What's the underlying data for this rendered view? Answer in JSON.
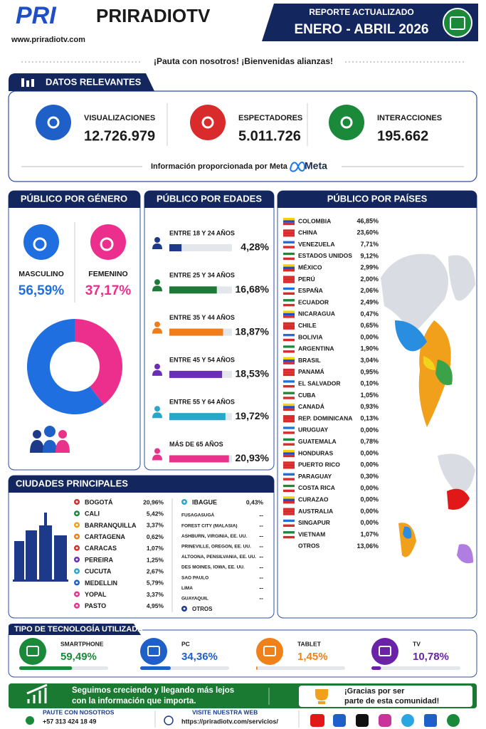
{
  "header": {
    "logo": "PRI",
    "brand": "PRIRADIOTV",
    "url": "www.priradiotv.com",
    "report_label": "REPORTE ACTUALIZADO",
    "period": "ENERO - ABRIL 2026"
  },
  "tagline": "¡Pauta con nosotros!  ¡Bienvenidas alianzas!",
  "key_data": {
    "title": "DATOS RELEVANTES",
    "items": [
      {
        "label": "VISUALIZACIONES",
        "value": "12.726.979",
        "color": "#1f5fc8"
      },
      {
        "label": "ESPECTADORES",
        "value": "5.011.726",
        "color": "#d92b2b"
      },
      {
        "label": "INTERACCIONES",
        "value": "195.662",
        "color": "#1a8a3a"
      }
    ],
    "source": "Información proporcionada por Meta",
    "source_logo": "Meta"
  },
  "gender": {
    "title": "PÚBLICO POR GÉNERO",
    "items": [
      {
        "label": "MASCULINO",
        "value": 56.59,
        "value_label": "56,59%",
        "color": "#1f6fe0"
      },
      {
        "label": "FEMENINO",
        "value": 37.17,
        "value_label": "37,17%",
        "color": "#ec2f8c"
      }
    ]
  },
  "ages": {
    "title": "PÚBLICO POR EDADES",
    "items": [
      {
        "label": "ENTRE 18 Y 24 AÑOS",
        "value": 4.28,
        "value_label": "4,28%",
        "color": "#1d3a8a"
      },
      {
        "label": "ENTRE 25 Y 34 AÑOS",
        "value": 16.68,
        "value_label": "16,68%",
        "color": "#1f7a3a"
      },
      {
        "label": "ENTRE 35 Y 44 AÑOS",
        "value": 18.87,
        "value_label": "18,87%",
        "color": "#f07c1a"
      },
      {
        "label": "ENTRE 45 Y 54 AÑOS",
        "value": 18.53,
        "value_label": "18,53%",
        "color": "#6a2fb5"
      },
      {
        "label": "ENTRE 55 Y 64 AÑOS",
        "value": 19.72,
        "value_label": "19,72%",
        "color": "#2aa6c9"
      },
      {
        "label": "MÁS DE 65 AÑOS",
        "value": 20.93,
        "value_label": "20,93%",
        "color": "#e8338a"
      }
    ]
  },
  "countries": {
    "title": "PÚBLICO POR PAÍSES",
    "items": [
      {
        "name": "COLOMBIA",
        "value": "46,85%"
      },
      {
        "name": "CHINA",
        "value": "23,60%"
      },
      {
        "name": "VENEZUELA",
        "value": "7,71%"
      },
      {
        "name": "ESTADOS UNIDOS",
        "value": "9,12%"
      },
      {
        "name": "MÉXICO",
        "value": "2,99%"
      },
      {
        "name": "PERÚ",
        "value": "2,00%"
      },
      {
        "name": "ESPAÑA",
        "value": "2,06%"
      },
      {
        "name": "ECUADOR",
        "value": "2,49%"
      },
      {
        "name": "NICARAGUA",
        "value": "0,47%"
      },
      {
        "name": "CHILE",
        "value": "0,65%"
      },
      {
        "name": "BOLIVIA",
        "value": "0,00%"
      },
      {
        "name": "ARGENTINA",
        "value": "1,90%"
      },
      {
        "name": "BRASIL",
        "value": "3,04%"
      },
      {
        "name": "PANAMÁ",
        "value": "0,95%"
      },
      {
        "name": "EL SALVADOR",
        "value": "0,10%"
      },
      {
        "name": "CUBA",
        "value": "1,05%"
      },
      {
        "name": "CANADÁ",
        "value": "0,93%"
      },
      {
        "name": "REP. DOMINICANA",
        "value": "0,13%"
      },
      {
        "name": "URUGUAY",
        "value": "0,00%"
      },
      {
        "name": "GUATEMALA",
        "value": "0,78%"
      },
      {
        "name": "HONDURAS",
        "value": "0,00%"
      },
      {
        "name": "PUERTO RICO",
        "value": "0,00%"
      },
      {
        "name": "PARAGUAY",
        "value": "0,30%"
      },
      {
        "name": "COSTA RICA",
        "value": "0,00%"
      },
      {
        "name": "CURAZAO",
        "value": "0,00%"
      },
      {
        "name": "AUSTRALIA",
        "value": "0,00%"
      },
      {
        "name": "SINGAPUR",
        "value": "0,00%"
      },
      {
        "name": "VIETNAM",
        "value": "1,07%"
      }
    ],
    "other": {
      "name": "OTROS",
      "value": "13,06%"
    }
  },
  "cities": {
    "title": "CIUDADES PRINCIPALES",
    "left": [
      {
        "name": "BOGOTÁ",
        "value": "20,96%",
        "color": "#d92b2b"
      },
      {
        "name": "CALI",
        "value": "5,42%",
        "color": "#1a8a3a"
      },
      {
        "name": "BARRANQUILLA",
        "value": "3,37%",
        "color": "#f0a01a"
      },
      {
        "name": "CARTAGENA",
        "value": "0,62%",
        "color": "#f07c1a"
      },
      {
        "name": "CARACAS",
        "value": "1,07%",
        "color": "#d92b2b"
      },
      {
        "name": "PEREIRA",
        "value": "1,25%",
        "color": "#6a2fb5"
      },
      {
        "name": "CUCUTA",
        "value": "2,67%",
        "color": "#2aa6c9"
      },
      {
        "name": "MEDELLIN",
        "value": "5,79%",
        "color": "#1f5fc8"
      },
      {
        "name": "YOPAL",
        "value": "3,37%",
        "color": "#e8338a"
      },
      {
        "name": "PASTO",
        "value": "4,95%",
        "color": "#e8338a"
      }
    ],
    "right": [
      {
        "name": "IBAGUE",
        "value": "0,43%",
        "color": "#2aa6c9"
      },
      {
        "name": "FUSAGASUGÁ",
        "value": "--"
      },
      {
        "name": "FOREST CITY (MALASIA)",
        "value": "--"
      },
      {
        "name": "ASHBURN, VIRGINIA, EE. UU.",
        "value": "--"
      },
      {
        "name": "PRINEVILLE, OREGON, EE. UU.",
        "value": "--"
      },
      {
        "name": "ALTOONA, PENSILVANIA, EE. UU.",
        "value": "--"
      },
      {
        "name": "DES MOINES, IOWA, EE. UU.",
        "value": "--"
      },
      {
        "name": "SAO PAULO",
        "value": "--"
      },
      {
        "name": "LIMA",
        "value": "--"
      },
      {
        "name": "GUAYAQUIL",
        "value": "--"
      }
    ],
    "other": {
      "name": "OTROS",
      "color": "#1d3a8a"
    }
  },
  "technology": {
    "title": "TIPO DE TECNOLOGÍA UTILIZADA",
    "items": [
      {
        "label": "SMARTPHONE",
        "value": 59.49,
        "value_label": "59,49%",
        "color": "#1a8a3a"
      },
      {
        "label": "PC",
        "value": 34.36,
        "value_label": "34,36%",
        "color": "#1f5fc8"
      },
      {
        "label": "TABLET",
        "value": 1.45,
        "value_label": "1,45%",
        "color": "#f0801a"
      },
      {
        "label": "TV",
        "value": 10.78,
        "value_label": "10,78%",
        "color": "#6a22a8"
      }
    ]
  },
  "footer": {
    "banner_line1": "Seguimos creciendo y llegando más lejos",
    "banner_line2": "con la información que importa.",
    "thanks_line1": "¡Gracias por ser",
    "thanks_line2": "parte de esta comunidad!",
    "contact_label": "PAUTE CON NOSOTROS",
    "phone": "+57 313 424 18 49",
    "web_label": "VISITE NUESTRA WEB",
    "web": "https://priradiotv.com/servicios/"
  }
}
